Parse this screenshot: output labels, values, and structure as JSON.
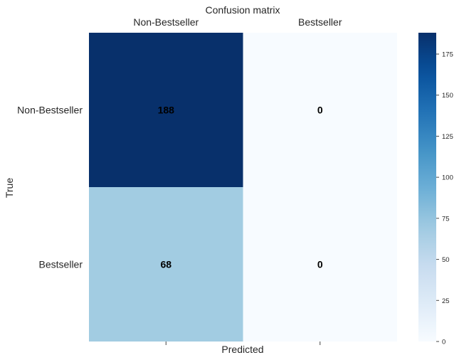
{
  "chart_data": {
    "type": "heatmap",
    "title": "Confusion matrix",
    "xlabel": "Predicted",
    "ylabel": "True",
    "x_categories": [
      "Non-Bestseller",
      "Bestseller"
    ],
    "y_categories": [
      "Non-Bestseller",
      "Bestseller"
    ],
    "x_tick_position": "top",
    "values": [
      [
        188,
        0
      ],
      [
        68,
        0
      ]
    ],
    "cell_labels": [
      [
        "188",
        "0"
      ],
      [
        "68",
        "0"
      ]
    ],
    "colormap": "Blues",
    "color_low": "#f7fbff",
    "color_high": "#08306b",
    "value_range": [
      0,
      188
    ],
    "colorbar": {
      "ticks": [
        0,
        25,
        50,
        75,
        100,
        125,
        150,
        175
      ],
      "tick_labels": [
        "0",
        "25",
        "50",
        "75",
        "100",
        "125",
        "150",
        "175"
      ]
    },
    "grid": false,
    "legend": "colorbar-right"
  }
}
